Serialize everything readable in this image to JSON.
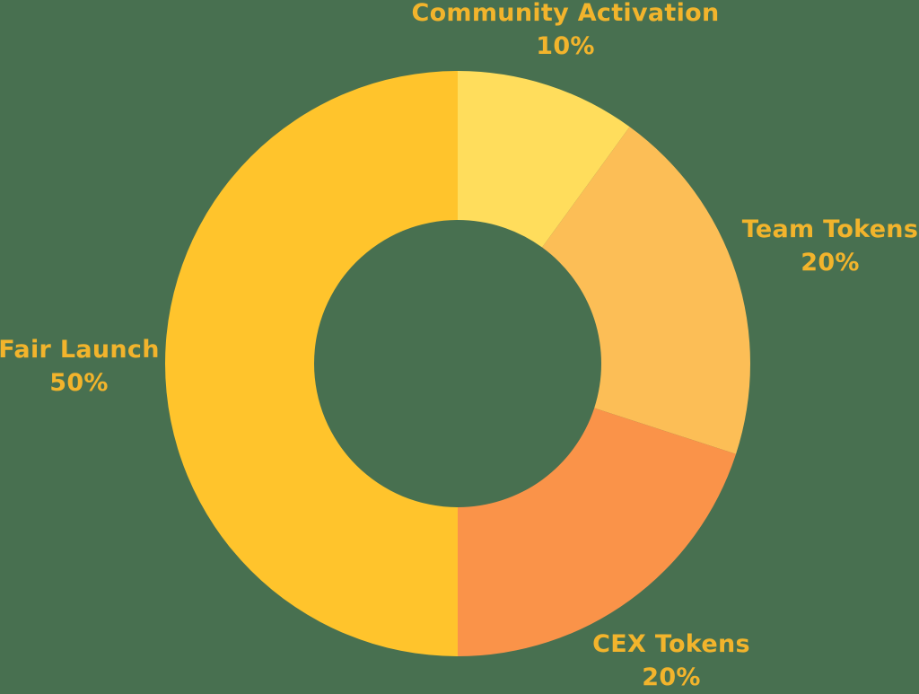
{
  "style": {
    "background_color": "#487050",
    "label_color": "#F2B42C"
  },
  "chart_data": {
    "type": "pie",
    "subtype": "donut",
    "start_angle_deg": -90,
    "direction": "clockwise",
    "inner_radius_ratio": 0.49,
    "legend": "none",
    "slices": [
      {
        "label": "Community Activation",
        "value": 10,
        "pct_label": "10%",
        "color": "#FFDD5C"
      },
      {
        "label": "Team Tokens",
        "value": 20,
        "pct_label": "20%",
        "color": "#FCBE56"
      },
      {
        "label": "CEX Tokens",
        "value": 20,
        "pct_label": "20%",
        "color": "#FA9349"
      },
      {
        "label": "Fair Launch",
        "value": 50,
        "pct_label": "50%",
        "color": "#FFC42C"
      }
    ]
  }
}
